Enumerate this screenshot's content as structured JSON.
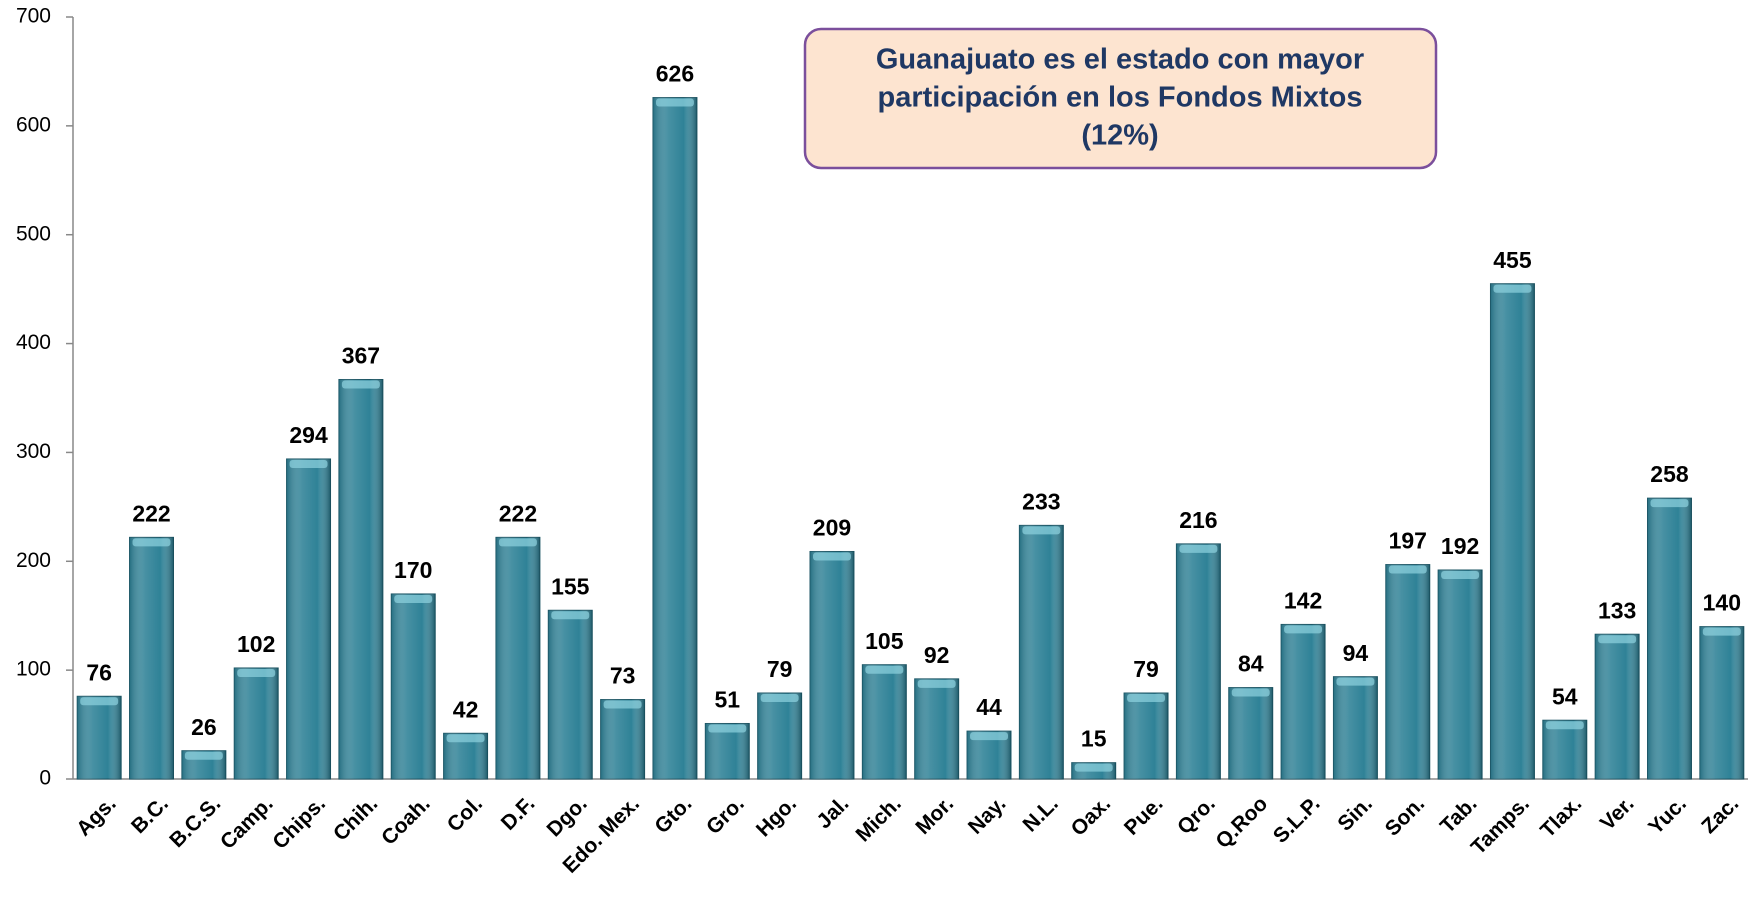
{
  "chart_data": {
    "type": "bar",
    "annotation": [
      "Guanajuato es el estado con mayor",
      "participación  en los Fondos Mixtos",
      "(12%)"
    ],
    "categories": [
      "Ags.",
      "B.C.",
      "B.C.S.",
      "Camp.",
      "Chips.",
      "Chih.",
      "Coah.",
      "Col.",
      "D.F.",
      "Dgo.",
      "Edo. Mex.",
      "Gto.",
      "Gro.",
      "Hgo.",
      "Jal.",
      "Mich.",
      "Mor.",
      "Nay.",
      "N.L.",
      "Oax.",
      "Pue.",
      "Qro.",
      "Q.Roo",
      "S.L.P.",
      "Sin.",
      "Son.",
      "Tab.",
      "Tamps.",
      "Tlax.",
      "Ver.",
      "Yuc.",
      "Zac."
    ],
    "values": [
      76,
      222,
      26,
      102,
      294,
      367,
      170,
      42,
      222,
      155,
      73,
      626,
      51,
      79,
      209,
      105,
      92,
      44,
      233,
      15,
      79,
      216,
      84,
      142,
      94,
      197,
      192,
      455,
      54,
      133,
      258,
      140
    ],
    "color": "#2f8297",
    "ylim": [
      0,
      700
    ],
    "yticks": [
      0,
      100,
      200,
      300,
      400,
      500,
      600,
      700
    ],
    "grid": false
  }
}
